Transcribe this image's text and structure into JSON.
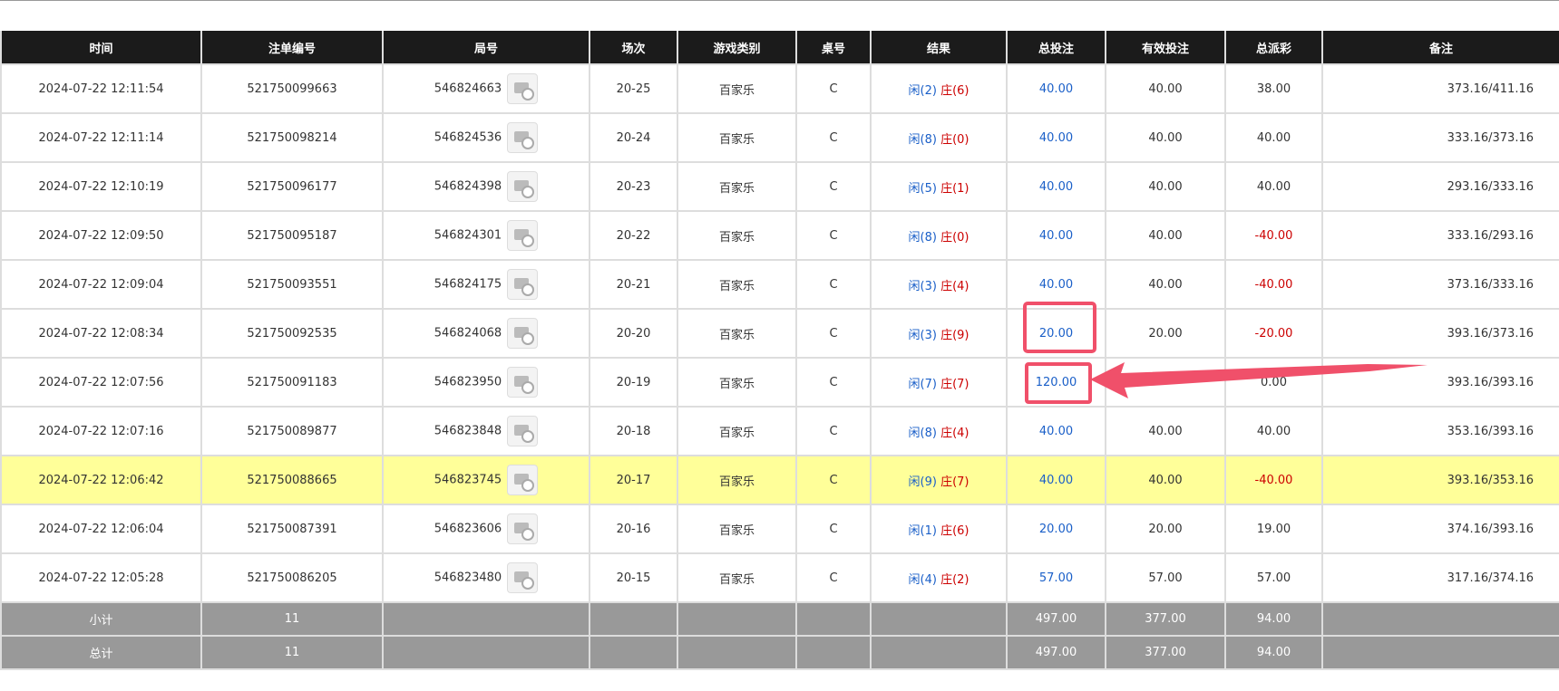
{
  "table": {
    "headers": [
      "时间",
      "注单编号",
      "局号",
      "场次",
      "游戏类别",
      "桌号",
      "结果",
      "总投注",
      "有效投注",
      "总派彩",
      "备注"
    ],
    "rows": [
      [
        "2024-07-22 12:11:54",
        "521750099663",
        "546824663",
        "20-25",
        "百家乐",
        "C",
        {
          "player": "闲(2)",
          "banker": "庄(6)"
        },
        "40.00",
        "40.00",
        "38.00",
        "373.16/411.16"
      ],
      [
        "2024-07-22 12:11:14",
        "521750098214",
        "546824536",
        "20-24",
        "百家乐",
        "C",
        {
          "player": "闲(8)",
          "banker": "庄(0)"
        },
        "40.00",
        "40.00",
        "40.00",
        "333.16/373.16"
      ],
      [
        "2024-07-22 12:10:19",
        "521750096177",
        "546824398",
        "20-23",
        "百家乐",
        "C",
        {
          "player": "闲(5)",
          "banker": "庄(1)"
        },
        "40.00",
        "40.00",
        "40.00",
        "293.16/333.16"
      ],
      [
        "2024-07-22 12:09:50",
        "521750095187",
        "546824301",
        "20-22",
        "百家乐",
        "C",
        {
          "player": "闲(8)",
          "banker": "庄(0)"
        },
        "40.00",
        "40.00",
        "-40.00",
        "333.16/293.16"
      ],
      [
        "2024-07-22 12:09:04",
        "521750093551",
        "546824175",
        "20-21",
        "百家乐",
        "C",
        {
          "player": "闲(3)",
          "banker": "庄(4)"
        },
        "40.00",
        "40.00",
        "-40.00",
        "373.16/333.16"
      ],
      [
        "2024-07-22 12:08:34",
        "521750092535",
        "546824068",
        "20-20",
        "百家乐",
        "C",
        {
          "player": "闲(3)",
          "banker": "庄(9)"
        },
        "20.00",
        "20.00",
        "-20.00",
        "393.16/373.16"
      ],
      [
        "2024-07-22 12:07:56",
        "521750091183",
        "546823950",
        "20-19",
        "百家乐",
        "C",
        {
          "player": "闲(7)",
          "banker": "庄(7)"
        },
        "120.00",
        null,
        "0.00",
        "393.16/393.16"
      ],
      [
        "2024-07-22 12:07:16",
        "521750089877",
        "546823848",
        "20-18",
        "百家乐",
        "C",
        {
          "player": "闲(8)",
          "banker": "庄(4)"
        },
        "40.00",
        "40.00",
        "40.00",
        "353.16/393.16"
      ],
      [
        "2024-07-22 12:06:42",
        "521750088665",
        "546823745",
        "20-17",
        "百家乐",
        "C",
        {
          "player": "闲(9)",
          "banker": "庄(7)"
        },
        "40.00",
        "40.00",
        "-40.00",
        "393.16/353.16"
      ],
      [
        "2024-07-22 12:06:04",
        "521750087391",
        "546823606",
        "20-16",
        "百家乐",
        "C",
        {
          "player": "闲(1)",
          "banker": "庄(6)"
        },
        "20.00",
        "20.00",
        "19.00",
        "374.16/393.16"
      ],
      [
        "2024-07-22 12:05:28",
        "521750086205",
        "546823480",
        "20-15",
        "百家乐",
        "C",
        {
          "player": "闲(4)",
          "banker": "庄(2)"
        },
        "57.00",
        "57.00",
        "57.00",
        "317.16/374.16"
      ]
    ],
    "footer": [
      {
        "label": "小计",
        "count": "11",
        "total_bet": "497.00",
        "valid_bet": "377.00",
        "payout": "94.00"
      },
      {
        "label": "总计",
        "count": "11",
        "total_bet": "497.00",
        "valid_bet": "377.00",
        "payout": "94.00"
      }
    ]
  }
}
